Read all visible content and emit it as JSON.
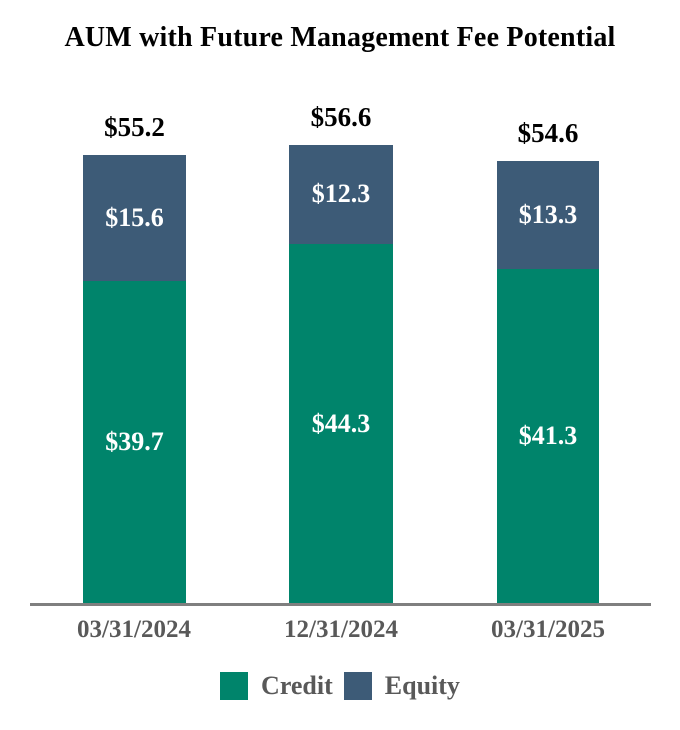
{
  "title": "AUM with Future Management Fee Potential",
  "chart_data": {
    "type": "bar",
    "stacked": true,
    "title": "AUM with Future Management Fee Potential",
    "categories": [
      "03/31/2024",
      "12/31/2024",
      "03/31/2025"
    ],
    "series": [
      {
        "name": "Credit",
        "color": "#00846B",
        "values": [
          39.7,
          44.3,
          41.3
        ],
        "labels": [
          "$39.7",
          "$44.3",
          "$41.3"
        ]
      },
      {
        "name": "Equity",
        "color": "#3D5B77",
        "values": [
          15.6,
          12.3,
          13.3
        ],
        "labels": [
          "$15.6",
          "$12.3",
          "$13.3"
        ]
      }
    ],
    "totals": [
      55.2,
      56.6,
      54.6
    ],
    "total_labels": [
      "$55.2",
      "$56.6",
      "$54.6"
    ],
    "legend": [
      "Credit",
      "Equity"
    ],
    "legend_position": "bottom",
    "y_axis_visible": false,
    "gridlines": false,
    "colors": {
      "total_label": "#000000",
      "inside_label": "#FFFFFF",
      "tick_label": "#595959",
      "axis_line": "#7F7F7F",
      "background": "#FFFFFF"
    }
  }
}
